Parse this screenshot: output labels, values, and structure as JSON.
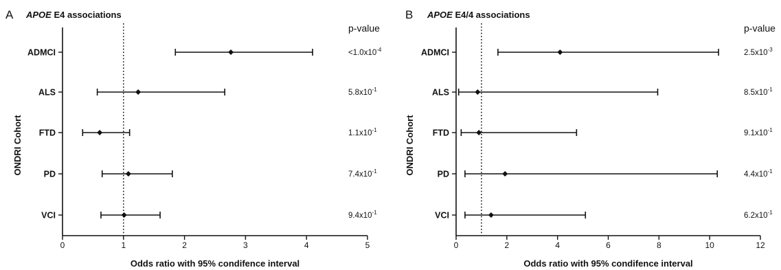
{
  "chart_data": [
    {
      "type": "forest",
      "panel_letter": "A",
      "title_italic": "APOE",
      "title_rest": " E4 associations",
      "ylabel": "ONDRI Cohort",
      "xlabel": "Odds ratio with 95% condifence interval",
      "xlim": [
        0,
        5
      ],
      "xticks": [
        "0",
        "1",
        "2",
        "3",
        "4",
        "5"
      ],
      "reference_line": 1,
      "pvalue_header": "p-value",
      "categories": [
        "ADMCI",
        "ALS",
        "FTD",
        "PD",
        "VCI"
      ],
      "estimate": [
        2.76,
        1.24,
        0.61,
        1.08,
        1.01
      ],
      "ci_low": [
        1.85,
        0.57,
        0.33,
        0.65,
        0.63
      ],
      "ci_high": [
        4.1,
        2.66,
        1.1,
        1.8,
        1.6
      ],
      "pvalues": [
        {
          "prefix": "<1.0x10",
          "exp": "-4"
        },
        {
          "prefix": "5.8x10",
          "exp": "-1"
        },
        {
          "prefix": "1.1x10",
          "exp": "-1"
        },
        {
          "prefix": "7.4x10",
          "exp": "-1"
        },
        {
          "prefix": "9.4x10",
          "exp": "-1"
        }
      ]
    },
    {
      "type": "forest",
      "panel_letter": "B",
      "title_italic": "APOE",
      "title_rest": " E4/4 associations",
      "ylabel": "ONDRI Cohort",
      "xlabel": "Odds ratio with 95% condifence interval",
      "xlim": [
        0,
        12
      ],
      "xticks": [
        "0",
        "2",
        "4",
        "6",
        "8",
        "10",
        "12"
      ],
      "reference_line": 1,
      "pvalue_header": "p-value",
      "categories": [
        "ADMCI",
        "ALS",
        "FTD",
        "PD",
        "VCI"
      ],
      "estimate": [
        4.1,
        0.85,
        0.9,
        1.93,
        1.38
      ],
      "ci_low": [
        1.65,
        0.1,
        0.2,
        0.35,
        0.35
      ],
      "ci_high": [
        10.35,
        7.95,
        4.75,
        10.3,
        5.1
      ],
      "pvalues": [
        {
          "prefix": "2.5x10",
          "exp": "-3"
        },
        {
          "prefix": "8.5x10",
          "exp": "-1"
        },
        {
          "prefix": "9.1x10",
          "exp": "-1"
        },
        {
          "prefix": "4.4x10",
          "exp": "-1"
        },
        {
          "prefix": "6.2x10",
          "exp": "-1"
        }
      ]
    }
  ]
}
